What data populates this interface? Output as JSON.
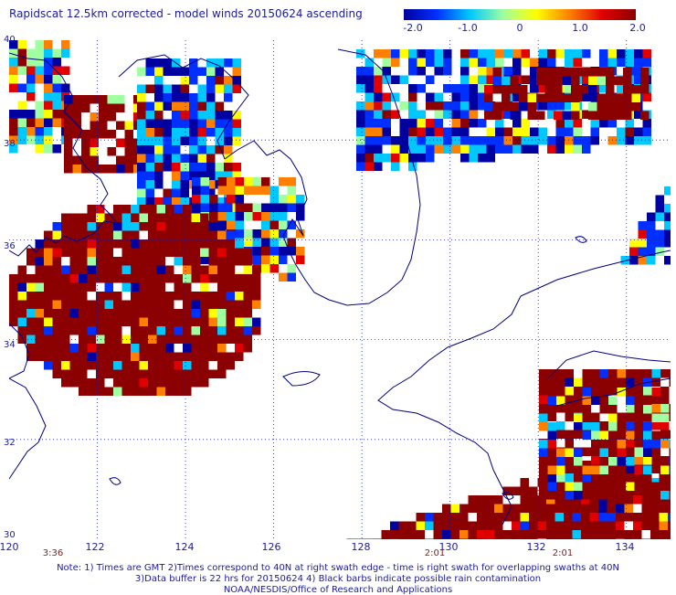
{
  "title": "Rapidscat 12.5km corrected - model winds 20150624 ascending",
  "colorbar": {
    "labels": [
      "-2.0",
      "-1.0",
      "0",
      "1.0",
      "2.0"
    ],
    "stops": [
      "#0000a0",
      "#0030ff",
      "#00c8ff",
      "#a0ffa0",
      "#ffff00",
      "#ff8000",
      "#e00000",
      "#8b0000"
    ]
  },
  "map": {
    "lon_range": [
      120,
      135
    ],
    "lat_range": [
      30,
      40
    ],
    "lat_labels": [
      "40",
      "38",
      "36",
      "34",
      "32",
      "30"
    ],
    "lon_labels": [
      "120",
      "122",
      "124",
      "126",
      "128",
      "130",
      "132",
      "134"
    ],
    "time_labels": [
      "3:36",
      "2:01",
      "2:01"
    ],
    "land_color": "#000080",
    "grid_style": "dotted",
    "time_label_color": "#8b1a1a",
    "text_color": "#1a1aa0"
  },
  "notes": {
    "line1": "Note: 1) Times are GMT 2)Times correspond to 40N at right swath edge - time is right swath for overlapping swaths at 40N",
    "line2": "3)Data buffer is 22 hrs for 20150624 4) Black barbs indicate possible rain contamination",
    "line3": "NOAA/NESDIS/Office of Research and Applications"
  }
}
